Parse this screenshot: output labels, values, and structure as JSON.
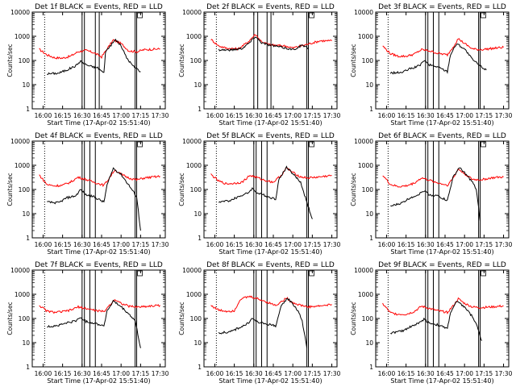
{
  "chart_data": {
    "type": "line",
    "layout": "3x3 grid",
    "x_start_time": "17-Apr-02 15:51:40",
    "xlabel": "Start Time (17-Apr-02 15:51:40)",
    "ylabel": "Counts/sec",
    "yscale": "log",
    "ylim": [
      1,
      10000
    ],
    "xlim": [
      "15:51:40",
      "17:34:00"
    ],
    "x_tick_labels": [
      "16:00",
      "16:15",
      "16:30",
      "16:45",
      "17:00",
      "17:15",
      "17:30"
    ],
    "y_tick_labels": [
      "1",
      "10",
      "100",
      "1000",
      "10000"
    ],
    "colors": {
      "events": "#000000",
      "lld": "#ff0000",
      "axes": "#000000"
    },
    "panels": [
      {
        "title": "Det 1f BLACK = Events, RED = LLD",
        "events": [
          [
            16.05,
            28
          ],
          [
            16.2,
            30
          ],
          [
            16.3,
            40
          ],
          [
            16.42,
            60
          ],
          [
            16.48,
            95
          ],
          [
            16.52,
            75
          ],
          [
            16.6,
            58
          ],
          [
            16.7,
            50
          ],
          [
            16.78,
            30
          ],
          [
            16.8,
            230
          ],
          [
            16.85,
            360
          ],
          [
            16.93,
            730
          ],
          [
            17.0,
            400
          ],
          [
            17.07,
            130
          ],
          [
            17.15,
            60
          ],
          [
            17.25,
            35
          ]
        ],
        "lld": [
          [
            15.95,
            290
          ],
          [
            16.05,
            170
          ],
          [
            16.15,
            130
          ],
          [
            16.25,
            125
          ],
          [
            16.35,
            150
          ],
          [
            16.45,
            230
          ],
          [
            16.55,
            260
          ],
          [
            16.65,
            210
          ],
          [
            16.75,
            140
          ],
          [
            16.82,
            300
          ],
          [
            16.9,
            700
          ],
          [
            17.0,
            500
          ],
          [
            17.1,
            250
          ],
          [
            17.2,
            230
          ],
          [
            17.3,
            280
          ],
          [
            17.5,
            300
          ]
        ],
        "vlines": [
          16.02,
          16.5,
          16.53,
          16.67,
          16.72,
          17.18,
          17.2
        ]
      },
      {
        "title": "Det 2f BLACK = Events, RED = LLD",
        "events": [
          [
            16.05,
            280
          ],
          [
            16.2,
            270
          ],
          [
            16.35,
            320
          ],
          [
            16.45,
            560
          ],
          [
            16.52,
            1000
          ],
          [
            16.6,
            550
          ],
          [
            16.7,
            430
          ],
          [
            16.8,
            380
          ],
          [
            16.9,
            330
          ],
          [
            17.0,
            280
          ],
          [
            17.07,
            350
          ],
          [
            17.12,
            430
          ],
          [
            17.2,
            300
          ]
        ],
        "lld": [
          [
            15.95,
            750
          ],
          [
            16.05,
            400
          ],
          [
            16.15,
            320
          ],
          [
            16.3,
            300
          ],
          [
            16.42,
            560
          ],
          [
            16.52,
            1200
          ],
          [
            16.6,
            600
          ],
          [
            16.7,
            450
          ],
          [
            16.8,
            420
          ],
          [
            16.9,
            400
          ],
          [
            17.0,
            330
          ],
          [
            17.1,
            400
          ],
          [
            17.2,
            480
          ],
          [
            17.35,
            650
          ],
          [
            17.5,
            650
          ]
        ],
        "vlines": [
          16.02,
          16.5,
          16.55,
          16.67,
          16.72,
          17.18,
          17.2
        ]
      },
      {
        "title": "Det 3f BLACK = Events, RED = LLD",
        "events": [
          [
            16.05,
            30
          ],
          [
            16.2,
            32
          ],
          [
            16.3,
            45
          ],
          [
            16.42,
            60
          ],
          [
            16.48,
            100
          ],
          [
            16.55,
            65
          ],
          [
            16.65,
            55
          ],
          [
            16.78,
            35
          ],
          [
            16.82,
            180
          ],
          [
            16.9,
            500
          ],
          [
            17.0,
            300
          ],
          [
            17.1,
            110
          ],
          [
            17.2,
            60
          ],
          [
            17.28,
            40
          ]
        ],
        "lld": [
          [
            15.95,
            400
          ],
          [
            16.05,
            190
          ],
          [
            16.15,
            150
          ],
          [
            16.25,
            150
          ],
          [
            16.35,
            180
          ],
          [
            16.45,
            280
          ],
          [
            16.55,
            250
          ],
          [
            16.65,
            200
          ],
          [
            16.78,
            170
          ],
          [
            16.85,
            350
          ],
          [
            16.92,
            800
          ],
          [
            17.0,
            500
          ],
          [
            17.1,
            300
          ],
          [
            17.2,
            280
          ],
          [
            17.3,
            300
          ],
          [
            17.5,
            350
          ]
        ],
        "vlines": [
          16.02,
          16.5,
          16.53,
          16.6,
          16.67,
          17.18,
          17.2
        ]
      },
      {
        "title": "Det 4f BLACK = Events, RED = LLD",
        "events": [
          [
            16.05,
            30
          ],
          [
            16.2,
            28
          ],
          [
            16.3,
            45
          ],
          [
            16.42,
            55
          ],
          [
            16.48,
            100
          ],
          [
            16.55,
            60
          ],
          [
            16.65,
            50
          ],
          [
            16.78,
            30
          ],
          [
            16.82,
            150
          ],
          [
            16.9,
            750
          ],
          [
            17.0,
            420
          ],
          [
            17.1,
            150
          ],
          [
            17.2,
            50
          ],
          [
            17.25,
            2
          ]
        ],
        "lld": [
          [
            15.95,
            400
          ],
          [
            16.05,
            160
          ],
          [
            16.15,
            140
          ],
          [
            16.25,
            150
          ],
          [
            16.35,
            200
          ],
          [
            16.45,
            320
          ],
          [
            16.55,
            260
          ],
          [
            16.65,
            200
          ],
          [
            16.78,
            150
          ],
          [
            16.85,
            300
          ],
          [
            16.92,
            650
          ],
          [
            17.0,
            420
          ],
          [
            17.1,
            300
          ],
          [
            17.2,
            250
          ],
          [
            17.3,
            300
          ],
          [
            17.5,
            350
          ]
        ],
        "vlines": [
          16.02,
          16.5,
          16.53,
          16.6,
          16.67,
          17.18,
          17.2
        ]
      },
      {
        "title": "Det 5f BLACK = Events, RED = LLD",
        "events": [
          [
            16.05,
            30
          ],
          [
            16.2,
            35
          ],
          [
            16.3,
            50
          ],
          [
            16.42,
            70
          ],
          [
            16.48,
            110
          ],
          [
            16.55,
            70
          ],
          [
            16.65,
            55
          ],
          [
            16.78,
            40
          ],
          [
            16.82,
            250
          ],
          [
            16.92,
            850
          ],
          [
            17.0,
            450
          ],
          [
            17.1,
            200
          ],
          [
            17.15,
            60
          ],
          [
            17.25,
            6
          ]
        ],
        "lld": [
          [
            15.95,
            420
          ],
          [
            16.05,
            220
          ],
          [
            16.15,
            170
          ],
          [
            16.25,
            180
          ],
          [
            16.35,
            200
          ],
          [
            16.45,
            380
          ],
          [
            16.52,
            330
          ],
          [
            16.62,
            250
          ],
          [
            16.75,
            200
          ],
          [
            16.85,
            380
          ],
          [
            16.92,
            780
          ],
          [
            17.0,
            500
          ],
          [
            17.1,
            330
          ],
          [
            17.2,
            300
          ],
          [
            17.35,
            330
          ],
          [
            17.5,
            380
          ]
        ],
        "vlines": [
          16.02,
          16.5,
          16.53,
          16.6,
          16.67,
          17.18,
          17.2
        ]
      },
      {
        "title": "Det 6f BLACK = Events, RED = LLD",
        "events": [
          [
            16.05,
            20
          ],
          [
            16.2,
            28
          ],
          [
            16.3,
            45
          ],
          [
            16.42,
            65
          ],
          [
            16.48,
            90
          ],
          [
            16.55,
            60
          ],
          [
            16.65,
            55
          ],
          [
            16.78,
            35
          ],
          [
            16.85,
            300
          ],
          [
            16.93,
            800
          ],
          [
            17.0,
            500
          ],
          [
            17.1,
            200
          ],
          [
            17.15,
            100
          ],
          [
            17.2,
            5
          ]
        ],
        "lld": [
          [
            15.95,
            390
          ],
          [
            16.05,
            160
          ],
          [
            16.15,
            130
          ],
          [
            16.25,
            140
          ],
          [
            16.35,
            180
          ],
          [
            16.45,
            300
          ],
          [
            16.55,
            240
          ],
          [
            16.65,
            190
          ],
          [
            16.78,
            150
          ],
          [
            16.85,
            280
          ],
          [
            16.92,
            700
          ],
          [
            17.0,
            450
          ],
          [
            17.1,
            260
          ],
          [
            17.2,
            250
          ],
          [
            17.35,
            300
          ],
          [
            17.5,
            330
          ]
        ],
        "vlines": [
          16.02,
          16.5,
          16.53,
          16.6,
          16.67,
          17.18,
          17.2
        ]
      },
      {
        "title": "Det 7f BLACK = Events, RED = LLD",
        "events": [
          [
            16.05,
            45
          ],
          [
            16.2,
            52
          ],
          [
            16.3,
            65
          ],
          [
            16.42,
            80
          ],
          [
            16.48,
            110
          ],
          [
            16.55,
            75
          ],
          [
            16.65,
            65
          ],
          [
            16.78,
            50
          ],
          [
            16.82,
            200
          ],
          [
            16.9,
            520
          ],
          [
            17.0,
            300
          ],
          [
            17.1,
            150
          ],
          [
            17.18,
            80
          ],
          [
            17.25,
            6
          ]
        ],
        "lld": [
          [
            15.95,
            350
          ],
          [
            16.05,
            200
          ],
          [
            16.15,
            180
          ],
          [
            16.25,
            190
          ],
          [
            16.35,
            220
          ],
          [
            16.45,
            300
          ],
          [
            16.55,
            260
          ],
          [
            16.65,
            220
          ],
          [
            16.78,
            190
          ],
          [
            16.85,
            350
          ],
          [
            16.92,
            620
          ],
          [
            17.0,
            420
          ],
          [
            17.1,
            320
          ],
          [
            17.2,
            300
          ],
          [
            17.35,
            320
          ],
          [
            17.5,
            350
          ]
        ],
        "vlines": [
          16.02,
          16.5,
          16.53,
          16.6,
          16.67,
          17.18,
          17.2
        ]
      },
      {
        "title": "Det 8f BLACK = Events, RED = LLD",
        "events": [
          [
            16.05,
            25
          ],
          [
            16.2,
            28
          ],
          [
            16.3,
            40
          ],
          [
            16.42,
            60
          ],
          [
            16.48,
            100
          ],
          [
            16.55,
            70
          ],
          [
            16.65,
            60
          ],
          [
            16.78,
            50
          ],
          [
            16.85,
            300
          ],
          [
            16.93,
            700
          ],
          [
            17.0,
            400
          ],
          [
            17.07,
            200
          ],
          [
            17.12,
            80
          ],
          [
            17.18,
            6
          ]
        ],
        "lld": [
          [
            15.95,
            350
          ],
          [
            16.05,
            220
          ],
          [
            16.15,
            200
          ],
          [
            16.25,
            210
          ],
          [
            16.33,
            650
          ],
          [
            16.45,
            800
          ],
          [
            16.55,
            650
          ],
          [
            16.65,
            500
          ],
          [
            16.78,
            350
          ],
          [
            16.85,
            480
          ],
          [
            16.92,
            700
          ],
          [
            17.0,
            450
          ],
          [
            17.1,
            350
          ],
          [
            17.2,
            300
          ],
          [
            17.35,
            330
          ],
          [
            17.5,
            380
          ]
        ],
        "vlines": [
          16.02,
          16.5,
          16.53,
          16.6,
          16.67,
          17.18,
          17.2
        ]
      },
      {
        "title": "Det 9f BLACK = Events, RED = LLD",
        "events": [
          [
            16.05,
            25
          ],
          [
            16.2,
            30
          ],
          [
            16.3,
            45
          ],
          [
            16.42,
            65
          ],
          [
            16.48,
            95
          ],
          [
            16.55,
            65
          ],
          [
            16.65,
            55
          ],
          [
            16.78,
            38
          ],
          [
            16.82,
            180
          ],
          [
            16.9,
            500
          ],
          [
            17.0,
            300
          ],
          [
            17.1,
            120
          ],
          [
            17.15,
            60
          ],
          [
            17.22,
            12
          ]
        ],
        "lld": [
          [
            15.95,
            410
          ],
          [
            16.05,
            170
          ],
          [
            16.15,
            150
          ],
          [
            16.25,
            150
          ],
          [
            16.35,
            190
          ],
          [
            16.45,
            320
          ],
          [
            16.55,
            260
          ],
          [
            16.65,
            210
          ],
          [
            16.78,
            180
          ],
          [
            16.85,
            320
          ],
          [
            16.92,
            650
          ],
          [
            17.0,
            420
          ],
          [
            17.1,
            300
          ],
          [
            17.2,
            280
          ],
          [
            17.35,
            300
          ],
          [
            17.5,
            330
          ]
        ],
        "vlines": [
          16.02,
          16.5,
          16.53,
          16.6,
          16.67,
          17.18,
          17.2
        ]
      }
    ]
  }
}
